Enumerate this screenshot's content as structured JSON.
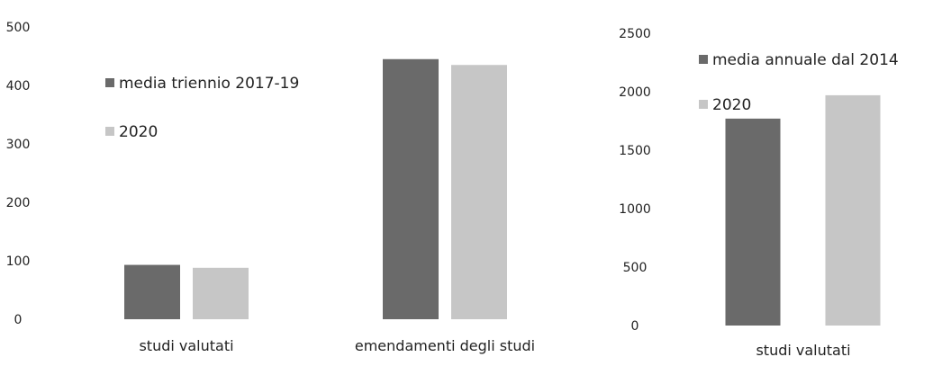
{
  "chart_data": [
    {
      "type": "bar",
      "categories": [
        "studi valutati",
        "emendamenti degli studi"
      ],
      "series": [
        {
          "name": "media triennio 2017-19",
          "values": [
            93,
            445
          ],
          "color": "#6a6a6a"
        },
        {
          "name": "2020",
          "values": [
            88,
            435
          ],
          "color": "#c6c6c6"
        }
      ],
      "ylim": [
        0,
        500
      ],
      "yticks": [
        "0",
        "100",
        "200",
        "300",
        "400",
        "500"
      ],
      "grid": false,
      "legend_position": "top-left"
    },
    {
      "type": "bar",
      "categories": [
        "studi valutati"
      ],
      "series": [
        {
          "name": "media annuale dal 2014",
          "values": [
            1770
          ],
          "color": "#6a6a6a"
        },
        {
          "name": "2020",
          "values": [
            1970
          ],
          "color": "#c6c6c6"
        }
      ],
      "ylim": [
        0,
        2500
      ],
      "yticks": [
        "0",
        "500",
        "1000",
        "1500",
        "2000",
        "2500"
      ],
      "grid": false,
      "legend_position": "top-right"
    }
  ]
}
